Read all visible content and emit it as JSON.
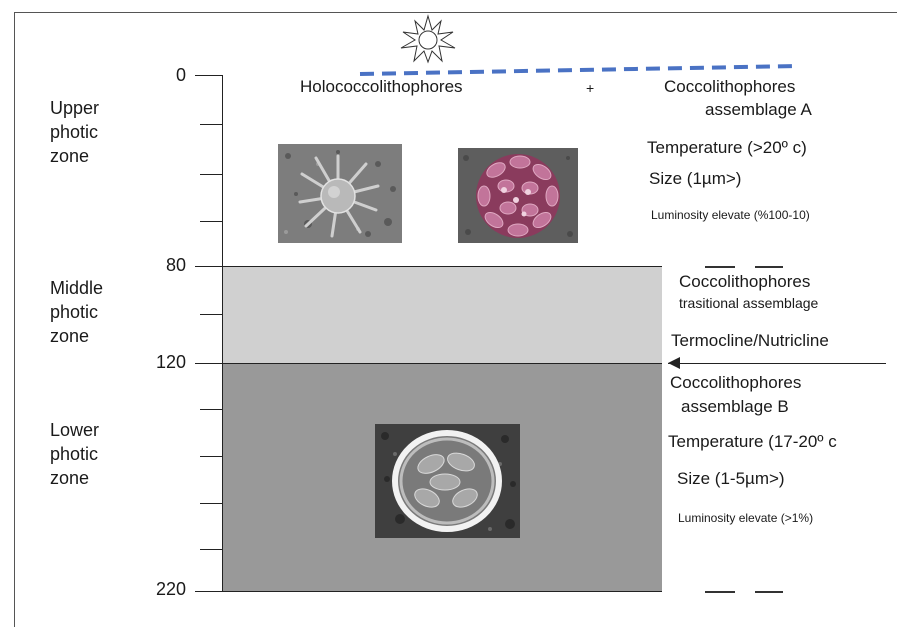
{
  "depths": [
    "0",
    "80",
    "120",
    "220"
  ],
  "zones": {
    "upper": [
      "Upper",
      "photic",
      "zone"
    ],
    "middle": [
      "Middle",
      "photic",
      "zone"
    ],
    "lower": [
      "Lower",
      "photic",
      "zone"
    ]
  },
  "surface": {
    "holo_label": "Holococcolithophores",
    "plus": "+",
    "assemblage_a": [
      "Coccolithophores",
      "assemblage A"
    ],
    "temperature": "Temperature (>20º c)",
    "size": "Size (1µm>)",
    "luminosity": "Luminosity elevate  (%100-10)"
  },
  "middle": {
    "assemblage": [
      "Coccolithophores",
      "trasitional assemblage"
    ],
    "termocline": "Termocline/Nutricline"
  },
  "lower": {
    "assemblage_b": [
      "Coccolithophores",
      "assemblage B"
    ],
    "temperature": "Temperature (17-20º c",
    "size": "Size (1-5µm>)",
    "luminosity": "Luminosity elevate  (>1%)"
  },
  "colors": {
    "sea_surface_dash": "#4a72c4",
    "middle_band": "#d0d0d0",
    "lower_band": "#999999"
  },
  "icons": [
    "sun-icon",
    "holococcolith-micrograph",
    "coccosphere-pink-micrograph",
    "coccolith-assemblage-b-micrograph"
  ]
}
